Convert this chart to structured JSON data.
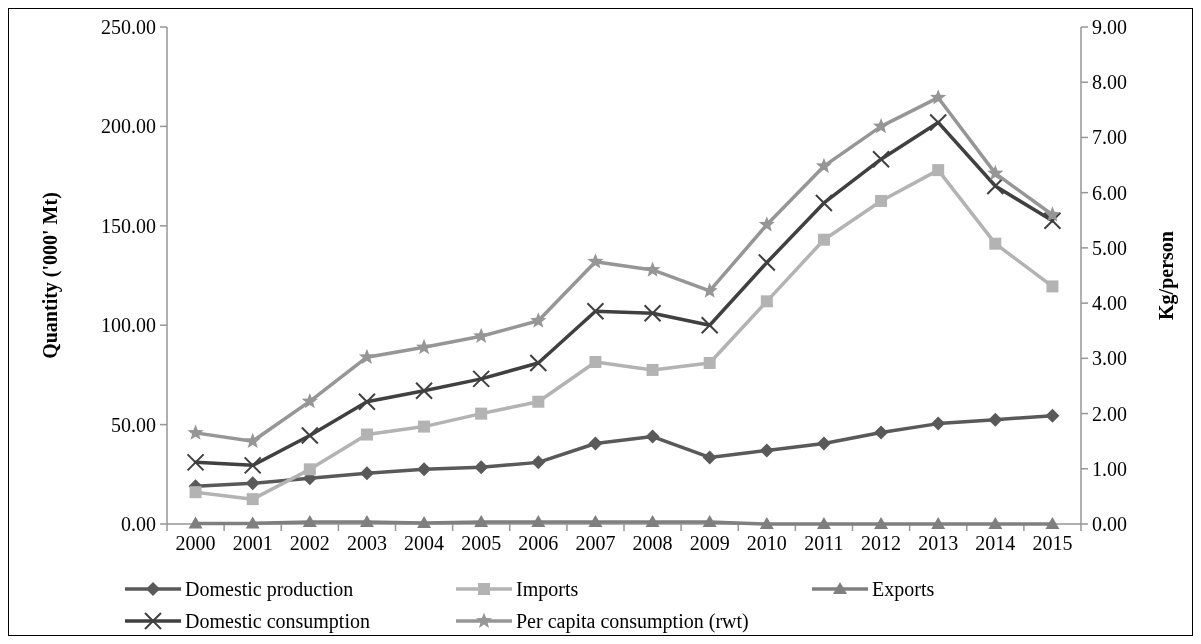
{
  "chart_data": {
    "type": "line",
    "categories": [
      "2000",
      "2001",
      "2002",
      "2003",
      "2004",
      "2005",
      "2006",
      "2007",
      "2008",
      "2009",
      "2010",
      "2011",
      "2012",
      "2013",
      "2014",
      "2015"
    ],
    "ylabel": "Quantity ('000' Mt)",
    "y2label": "Kg/person",
    "ylim": [
      0,
      250
    ],
    "yticks": [
      {
        "value": 0,
        "label": "0.00"
      },
      {
        "value": 50,
        "label": "50.00"
      },
      {
        "value": 100,
        "label": "100.00"
      },
      {
        "value": 150,
        "label": "150.00"
      },
      {
        "value": 200,
        "label": "200.00"
      },
      {
        "value": 250,
        "label": "250.00"
      }
    ],
    "y2lim": [
      0,
      9
    ],
    "y2ticks": [
      {
        "value": 0,
        "label": "0.00"
      },
      {
        "value": 1,
        "label": "1.00"
      },
      {
        "value": 2,
        "label": "2.00"
      },
      {
        "value": 3,
        "label": "3.00"
      },
      {
        "value": 4,
        "label": "4.00"
      },
      {
        "value": 5,
        "label": "5.00"
      },
      {
        "value": 6,
        "label": "6.00"
      },
      {
        "value": 7,
        "label": "7.00"
      },
      {
        "value": 8,
        "label": "8.00"
      },
      {
        "value": 9,
        "label": "9.00"
      }
    ],
    "grid": false,
    "legend": "bottom",
    "series": [
      {
        "name": "Domestic production",
        "color": "#595959",
        "marker": "diamond",
        "values": [
          19,
          20.5,
          23,
          25.5,
          27.5,
          28.5,
          31,
          40.5,
          44,
          33.5,
          37,
          40.5,
          46,
          50.5,
          52.5,
          54.5
        ]
      },
      {
        "name": "Imports",
        "color": "#b3b3b3",
        "marker": "square",
        "values": [
          16,
          12.5,
          27.5,
          45,
          49,
          55.5,
          61.5,
          81.5,
          77.5,
          81,
          112,
          143,
          162.5,
          178,
          141,
          119.5
        ]
      },
      {
        "name": "Exports",
        "color": "#7f7f7f",
        "marker": "triangle",
        "values": [
          0.3,
          0.3,
          1,
          1,
          0.5,
          1,
          1,
          1,
          1,
          1,
          0,
          0,
          0,
          0,
          0,
          0
        ]
      },
      {
        "name": "Domestic consumption",
        "color": "#404040",
        "marker": "cross",
        "values": [
          31,
          29.5,
          44.5,
          61.5,
          67,
          73,
          81,
          107,
          106,
          100,
          131.5,
          161.5,
          183.5,
          202,
          170,
          152.5
        ]
      },
      {
        "name": "Per capita consumption (rwt)",
        "color": "#969696",
        "marker": "star",
        "axis": "y2",
        "values": [
          1.65,
          1.5,
          2.22,
          3.02,
          3.2,
          3.4,
          3.68,
          4.75,
          4.6,
          4.22,
          5.42,
          6.48,
          7.2,
          7.72,
          6.35,
          5.6
        ]
      }
    ]
  }
}
